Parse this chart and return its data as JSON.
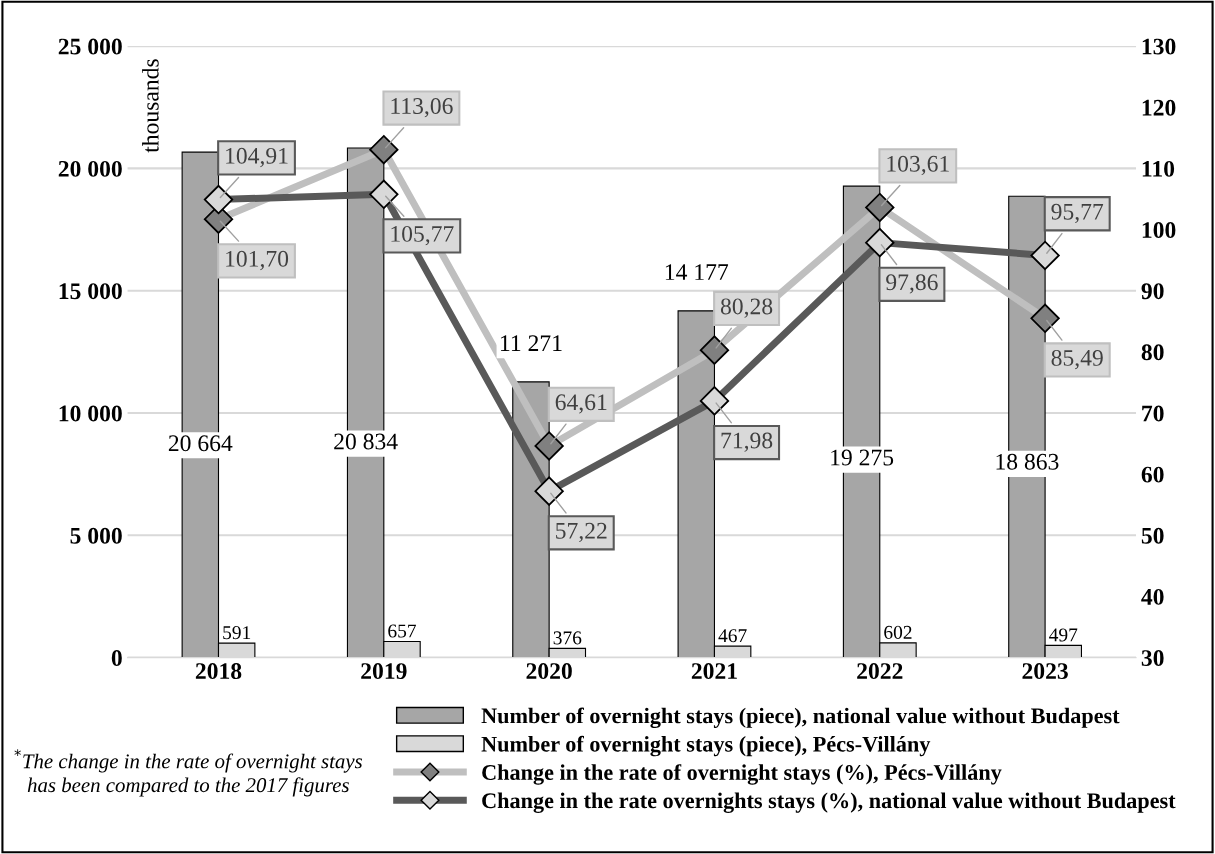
{
  "chart_data": {
    "type": "bar",
    "categories": [
      "2018",
      "2019",
      "2020",
      "2021",
      "2022",
      "2023"
    ],
    "ylabel": "thousands",
    "ylim": [
      0,
      25000
    ],
    "yticks": [
      {
        "value": 0,
        "label": "0"
      },
      {
        "value": 5000,
        "label": "5 000"
      },
      {
        "value": 10000,
        "label": "10 000"
      },
      {
        "value": 15000,
        "label": "15 000"
      },
      {
        "value": 20000,
        "label": "20 000"
      },
      {
        "value": 25000,
        "label": "25 000"
      }
    ],
    "y2lim": [
      30,
      130
    ],
    "y2ticks": [
      30,
      40,
      50,
      60,
      70,
      80,
      90,
      100,
      110,
      120,
      130
    ],
    "grid": "y",
    "legend": "bottom",
    "marker": "diamond",
    "series": [
      {
        "name": "Number of overnight stays (piece), national value without Budapest",
        "color": "#a6a6a6",
        "values": [
          20664,
          20834,
          11271,
          14177,
          19275,
          18863
        ],
        "value_labels": [
          "20 664",
          "20 834",
          "11 271",
          "14 177",
          "19 275",
          "18 863"
        ]
      },
      {
        "name": "Number of overnight stays (piece), Pécs-Villány",
        "color": "#d9d9d9",
        "values": [
          591,
          657,
          376,
          467,
          602,
          497
        ],
        "value_labels": [
          "591",
          "657",
          "376",
          "467",
          "602",
          "497"
        ]
      },
      {
        "name": "Change in the rate of overnight stays (%), Pécs-Villány",
        "type": "line",
        "axis": "y2",
        "color": "#bfbfbf",
        "colors": [
          "#808080",
          "#808080",
          "#808080",
          "#808080",
          "#808080",
          "#808080"
        ],
        "values": [
          101.7,
          113.06,
          64.61,
          80.28,
          103.61,
          85.49
        ],
        "value_labels": [
          "101,70",
          "113,06",
          "64,61",
          "80,28",
          "103,61",
          "85,49"
        ]
      },
      {
        "name": "Change in the rate overnights stays (%), national value without Budapest",
        "type": "line",
        "axis": "y2",
        "color": "#595959",
        "colors": [
          "#d9d9d9",
          "#d9d9d9",
          "#d9d9d9",
          "#d9d9d9",
          "#d9d9d9",
          "#d9d9d9"
        ],
        "values": [
          104.91,
          105.77,
          57.22,
          71.98,
          97.86,
          95.77
        ],
        "value_labels": [
          "104,91",
          "105,77",
          "57,22",
          "71,98",
          "97,86",
          "95,77"
        ]
      }
    ],
    "annotations": [
      "$^{*}$The change in the rate of overnight stays has been compared to the 2017 figures"
    ]
  }
}
